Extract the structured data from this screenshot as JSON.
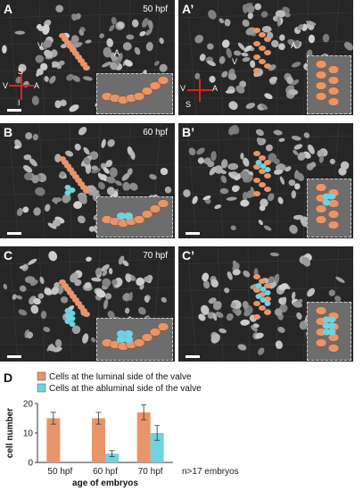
{
  "panels": [
    {
      "id": "A",
      "label": "A",
      "time": "50 hpf",
      "labels": [
        "V",
        "A"
      ],
      "axes": {
        "s": "S",
        "v": "V",
        "a": "A",
        "i": "I"
      },
      "blue": 0
    },
    {
      "id": "A2",
      "label": "A’",
      "time": "",
      "labels": [
        "V",
        "A"
      ],
      "axes": {
        "s": "S",
        "v": "V",
        "a": "A",
        "i": ""
      },
      "blue": 0
    },
    {
      "id": "B",
      "label": "B",
      "time": "60 hpf",
      "labels": [],
      "blue": 1
    },
    {
      "id": "B2",
      "label": "B’",
      "time": "",
      "labels": [],
      "blue": 1
    },
    {
      "id": "C",
      "label": "C",
      "time": "70 hpf",
      "labels": [],
      "blue": 2
    },
    {
      "id": "C2",
      "label": "C’",
      "time": "",
      "labels": [],
      "blue": 2
    }
  ],
  "panel_d": {
    "label": "D",
    "note": "n>17 embryos"
  },
  "colors": {
    "luminal": "#e8956a",
    "abluminal": "#6fd3e0",
    "panel_bg": "#262626",
    "cell_gray": "#a8a8a8"
  },
  "chart_data": {
    "type": "bar",
    "categories": [
      "50 hpf",
      "60 hpf",
      "70 hpf"
    ],
    "series": [
      {
        "name": "Cells at the luminal side of the valve",
        "values": [
          15,
          15,
          17
        ],
        "errors": [
          2,
          2,
          2.5
        ],
        "color": "#e8956a"
      },
      {
        "name": "Cells at the abluminal side of the valve",
        "values": [
          0,
          3,
          10
        ],
        "errors": [
          0,
          1,
          2.5
        ],
        "color": "#6fd3e0"
      }
    ],
    "ylabel": "cell number",
    "xlabel": "age of embryos",
    "ylim": [
      0,
      20
    ],
    "yticks": [
      0,
      10,
      20
    ],
    "legend": "top"
  }
}
